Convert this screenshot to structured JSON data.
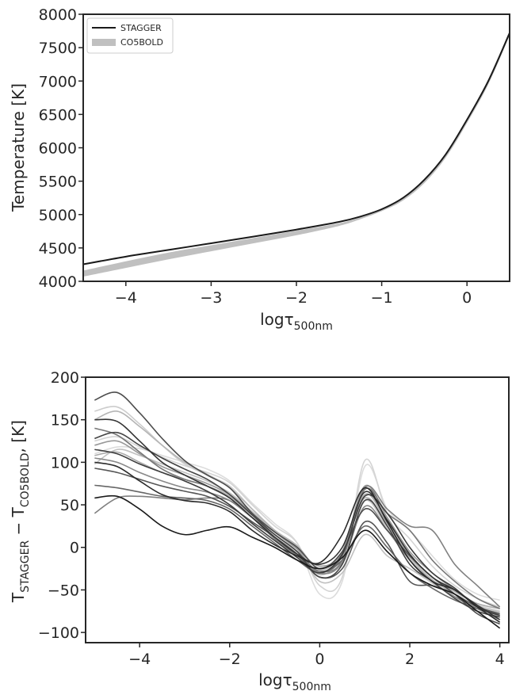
{
  "chart_data": [
    {
      "type": "line",
      "xlabel": "logτ",
      "xlabel_sub": "500nm",
      "ylabel": "Temperature [K]",
      "xlim": [
        -4.5,
        0.5
      ],
      "ylim": [
        4000,
        8000
      ],
      "xticks": [
        "−4",
        "−3",
        "−2",
        "−1",
        "0"
      ],
      "xtick_values": [
        -4,
        -3,
        -2,
        -1,
        0
      ],
      "yticks": [
        "4000",
        "4500",
        "5000",
        "5500",
        "6000",
        "6500",
        "7000",
        "7500",
        "8000"
      ],
      "ytick_values": [
        4000,
        4500,
        5000,
        5500,
        6000,
        6500,
        7000,
        7500,
        8000
      ],
      "legend_position": "top-left",
      "series": [
        {
          "name": "STAGGER",
          "color": "#1a1a1a",
          "x": [
            -4.5,
            -4.0,
            -3.5,
            -3.0,
            -2.5,
            -2.0,
            -1.5,
            -1.25,
            -1.0,
            -0.75,
            -0.5,
            -0.25,
            0.0,
            0.25,
            0.5
          ],
          "y": [
            4255,
            4370,
            4470,
            4570,
            4670,
            4775,
            4890,
            4970,
            5080,
            5250,
            5520,
            5900,
            6420,
            7000,
            7720
          ]
        },
        {
          "name": "CO5BOLD",
          "color": "#c0c0c0",
          "x": [
            -4.5,
            -4.0,
            -3.5,
            -3.0,
            -2.5,
            -2.0,
            -1.5,
            -1.25,
            -1.0,
            -0.75,
            -0.5,
            -0.25,
            0.0,
            0.25,
            0.5
          ],
          "y_upper": [
            4160,
            4300,
            4430,
            4540,
            4650,
            4760,
            4870,
            4960,
            5080,
            5260,
            5540,
            5920,
            6440,
            7020,
            7730
          ],
          "y_lower": [
            4070,
            4200,
            4330,
            4450,
            4570,
            4690,
            4830,
            4930,
            5050,
            5210,
            5470,
            5850,
            6370,
            6950,
            7680
          ]
        }
      ]
    },
    {
      "type": "line",
      "xlabel": "logτ",
      "xlabel_sub": "500nm",
      "ylabel": "T",
      "ylabel_sub1": "STAGGER",
      "ylabel_mid": " − T",
      "ylabel_sub2": "CO5BOLD",
      "ylabel_tail": ", [K]",
      "xlim": [
        -5.2,
        4.2
      ],
      "ylim": [
        -112,
        200
      ],
      "xticks": [
        "−4",
        "−2",
        "0",
        "2",
        "4"
      ],
      "xtick_values": [
        -4,
        -2,
        0,
        2,
        4
      ],
      "yticks": [
        "−100",
        "−50",
        "0",
        "50",
        "100",
        "150",
        "200"
      ],
      "ytick_values": [
        -100,
        -50,
        0,
        50,
        100,
        150,
        200
      ],
      "x": [
        -5.0,
        -4.5,
        -4.0,
        -3.5,
        -3.0,
        -2.5,
        -2.0,
        -1.5,
        -1.0,
        -0.5,
        0.0,
        0.5,
        1.0,
        1.5,
        2.0,
        2.5,
        3.0,
        3.5,
        4.0
      ],
      "series": [
        {
          "color": "#1a1a1a",
          "values": [
            58,
            60,
            45,
            25,
            15,
            20,
            24,
            12,
            0,
            -15,
            -25,
            -12,
            20,
            -5,
            -30,
            -45,
            -55,
            -75,
            -95
          ]
        },
        {
          "color": "#2a2a2a",
          "values": [
            100,
            95,
            78,
            62,
            55,
            52,
            42,
            20,
            3,
            -10,
            -18,
            15,
            70,
            30,
            -15,
            -40,
            -50,
            -70,
            -88
          ]
        },
        {
          "color": "#333333",
          "values": [
            150,
            148,
            125,
            100,
            85,
            72,
            58,
            35,
            12,
            -8,
            -20,
            0,
            65,
            32,
            -8,
            -35,
            -50,
            -68,
            -85
          ]
        },
        {
          "color": "#3d3d3d",
          "values": [
            115,
            110,
            98,
            88,
            78,
            66,
            50,
            28,
            8,
            -12,
            -30,
            -8,
            60,
            40,
            0,
            -30,
            -48,
            -70,
            -80
          ]
        },
        {
          "color": "#444444",
          "values": [
            128,
            135,
            120,
            105,
            92,
            80,
            62,
            38,
            15,
            -5,
            -35,
            -20,
            55,
            25,
            -20,
            -40,
            -60,
            -75,
            -82
          ]
        },
        {
          "color": "#4d4d4d",
          "values": [
            173,
            182,
            158,
            128,
            102,
            85,
            70,
            40,
            18,
            0,
            -25,
            -5,
            45,
            20,
            -10,
            -35,
            -55,
            -78,
            -90
          ]
        },
        {
          "color": "#555555",
          "values": [
            93,
            88,
            80,
            72,
            66,
            60,
            48,
            30,
            12,
            -8,
            -35,
            -25,
            30,
            5,
            -40,
            -45,
            -55,
            -70,
            -78
          ]
        },
        {
          "color": "#666666",
          "values": [
            73,
            70,
            65,
            60,
            58,
            55,
            45,
            25,
            5,
            -15,
            -30,
            -15,
            25,
            0,
            -30,
            -48,
            -62,
            -72,
            -80
          ]
        },
        {
          "color": "#777777",
          "values": [
            140,
            132,
            112,
            92,
            80,
            72,
            58,
            35,
            15,
            -5,
            -28,
            -10,
            68,
            40,
            20,
            -15,
            -40,
            -60,
            -72
          ]
        },
        {
          "color": "#808080",
          "values": [
            40,
            58,
            60,
            58,
            56,
            58,
            55,
            35,
            10,
            -10,
            -28,
            -15,
            70,
            45,
            25,
            20,
            -20,
            -45,
            -70
          ]
        },
        {
          "color": "#888888",
          "values": [
            105,
            100,
            88,
            78,
            70,
            65,
            55,
            35,
            15,
            -5,
            -30,
            -18,
            48,
            20,
            -15,
            -40,
            -58,
            -72,
            -85
          ]
        },
        {
          "color": "#999999",
          "values": [
            120,
            125,
            110,
            95,
            85,
            75,
            62,
            40,
            18,
            -2,
            -22,
            -5,
            72,
            35,
            -5,
            -30,
            -50,
            -68,
            -80
          ]
        },
        {
          "color": "#aaaaaa",
          "values": [
            108,
            112,
            100,
            88,
            80,
            72,
            60,
            38,
            18,
            -2,
            -32,
            -10,
            62,
            28,
            -10,
            -35,
            -52,
            -66,
            -72
          ]
        },
        {
          "color": "#b5b5b5",
          "values": [
            150,
            160,
            142,
            120,
            100,
            86,
            70,
            45,
            20,
            2,
            -26,
            -6,
            58,
            25,
            -12,
            -38,
            -55,
            -70,
            -82
          ]
        },
        {
          "color": "#c0c0c0",
          "values": [
            98,
            115,
            108,
            98,
            88,
            78,
            64,
            42,
            20,
            0,
            -40,
            -30,
            15,
            -10,
            -25,
            -42,
            -58,
            -70,
            -76
          ]
        },
        {
          "color": "#cccccc",
          "values": [
            160,
            165,
            145,
            120,
            98,
            85,
            72,
            45,
            20,
            -2,
            -30,
            -5,
            55,
            22,
            -15,
            -40,
            -58,
            -68,
            -75
          ]
        },
        {
          "color": "#d4d4d4",
          "values": [
            125,
            130,
            118,
            106,
            96,
            88,
            76,
            50,
            25,
            5,
            -45,
            -35,
            102,
            40,
            10,
            -22,
            -45,
            -60,
            -70
          ]
        },
        {
          "color": "#dcdcdc",
          "values": [
            110,
            118,
            116,
            108,
            100,
            92,
            78,
            52,
            28,
            5,
            -55,
            -40,
            95,
            45,
            20,
            -10,
            -38,
            -55,
            -62
          ]
        }
      ]
    }
  ]
}
